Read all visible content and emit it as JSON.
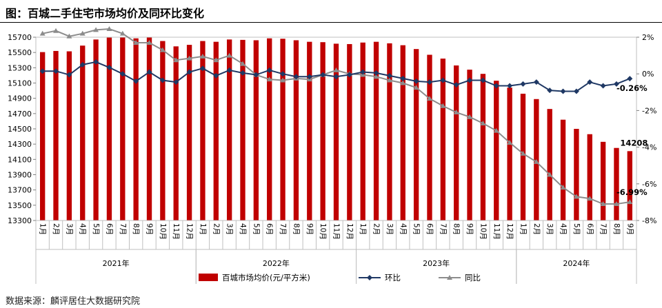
{
  "title": "图：百城二手住宅市场均价及同环比变化",
  "source": "数据来源：麟评居住大数据研究院",
  "chart_data": {
    "type": "bar",
    "title": "百城二手住宅市场均价及同环比变化",
    "categories": [
      "1月",
      "2月",
      "3月",
      "4月",
      "5月",
      "6月",
      "7月",
      "8月",
      "9月",
      "10月",
      "11月",
      "12月",
      "1月",
      "2月",
      "3月",
      "4月",
      "5月",
      "6月",
      "7月",
      "8月",
      "9月",
      "10月",
      "11月",
      "12月",
      "1月",
      "2月",
      "3月",
      "4月",
      "5月",
      "6月",
      "7月",
      "8月",
      "9月",
      "10月",
      "11月",
      "12月",
      "1月",
      "2月",
      "3月",
      "4月",
      "5月",
      "6月",
      "7月",
      "8月",
      "9月"
    ],
    "years": [
      {
        "label": "2021年",
        "start": 0,
        "count": 12
      },
      {
        "label": "2022年",
        "start": 12,
        "count": 12
      },
      {
        "label": "2023年",
        "start": 24,
        "count": 12
      },
      {
        "label": "2024年",
        "start": 36,
        "count": 9
      }
    ],
    "y_left": {
      "min": 13300,
      "max": 15700,
      "ticks": [
        13300,
        13500,
        13700,
        13900,
        14100,
        14300,
        14500,
        14700,
        14900,
        15100,
        15300,
        15500,
        15700
      ]
    },
    "y_right": {
      "min": -8,
      "max": 2,
      "ticks": [
        2,
        0,
        -2,
        -4,
        -6,
        -8
      ],
      "tick_labels": [
        "2%",
        "0%",
        "-2%",
        "-4%",
        "-6%",
        "-8%"
      ]
    },
    "series": [
      {
        "name": "百城市场均价(元/平方米)",
        "type": "bar",
        "axis": "left",
        "color": "#C00000",
        "values": [
          15505,
          15520,
          15515,
          15590,
          15670,
          15695,
          15700,
          15685,
          15700,
          15650,
          15580,
          15600,
          15650,
          15640,
          15670,
          15665,
          15660,
          15685,
          15680,
          15660,
          15640,
          15635,
          15615,
          15610,
          15630,
          15640,
          15620,
          15595,
          15545,
          15470,
          15420,
          15330,
          15275,
          15220,
          15130,
          15040,
          14960,
          14890,
          14760,
          14620,
          14500,
          14430,
          14330,
          14250,
          14208
        ]
      },
      {
        "name": "环比",
        "type": "line",
        "axis": "right",
        "color": "#1F3864",
        "marker": "diamond",
        "values": [
          0.15,
          0.15,
          -0.05,
          0.5,
          0.65,
          0.35,
          0.0,
          -0.4,
          0.1,
          -0.35,
          -0.45,
          0.1,
          0.3,
          -0.1,
          0.2,
          0.05,
          -0.05,
          0.2,
          0.0,
          -0.15,
          -0.15,
          -0.05,
          -0.15,
          -0.05,
          0.1,
          0.05,
          -0.1,
          -0.25,
          -0.4,
          -0.45,
          -0.35,
          -0.6,
          -0.35,
          -0.35,
          -0.65,
          -0.65,
          -0.55,
          -0.45,
          -0.9,
          -0.95,
          -0.95,
          -0.45,
          -0.65,
          -0.55,
          -0.26
        ]
      },
      {
        "name": "同比",
        "type": "line",
        "axis": "right",
        "color": "#8C8C8C",
        "marker": "triangle",
        "values": [
          2.2,
          2.35,
          2.05,
          2.2,
          2.4,
          2.45,
          2.2,
          1.7,
          1.7,
          1.3,
          0.75,
          0.85,
          0.95,
          0.75,
          1.0,
          0.55,
          -0.05,
          -0.3,
          -0.35,
          -0.25,
          -0.3,
          -0.05,
          0.2,
          0.0,
          -0.05,
          -0.15,
          -0.35,
          -0.5,
          -0.75,
          -1.35,
          -1.75,
          -2.1,
          -2.35,
          -2.7,
          -3.1,
          -3.75,
          -4.35,
          -4.8,
          -5.5,
          -6.2,
          -6.7,
          -6.8,
          -7.1,
          -7.1,
          -6.99
        ]
      }
    ],
    "annotations": [
      {
        "series": "百城市场均价(元/平方米)",
        "index": 44,
        "text": "14208"
      },
      {
        "series": "环比",
        "index": 44,
        "text": "-0.26%"
      },
      {
        "series": "同比",
        "index": 44,
        "text": "-6.99%"
      }
    ],
    "legend": {
      "position": "bottom",
      "items": [
        "百城市场均价(元/平方米)",
        "环比",
        "同比"
      ]
    }
  }
}
